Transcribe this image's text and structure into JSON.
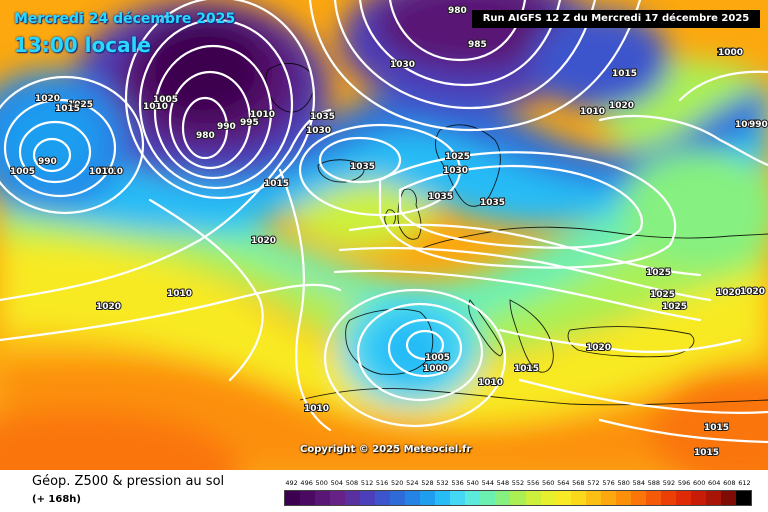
{
  "header": {
    "valid_date": "Mercredi 24 décembre 2025",
    "local_time": "13:00 locale",
    "run_info": "Run AIGFS 12 Z du Mercredi 17 décembre 2025"
  },
  "copyright": "Copyright © 2025 Meteociel.fr",
  "footer": {
    "caption": "Géop. Z500 & pression au sol",
    "forecast_hour": "(+ 168h)"
  },
  "legend": {
    "labels": [
      "492",
      "496",
      "500",
      "504",
      "508",
      "512",
      "516",
      "520",
      "524",
      "528",
      "532",
      "536",
      "540",
      "544",
      "548",
      "552",
      "556",
      "560",
      "564",
      "568",
      "572",
      "576",
      "580",
      "584",
      "588",
      "592",
      "596",
      "600",
      "604",
      "608",
      "612"
    ],
    "colors": [
      "#3c0050",
      "#4b0a62",
      "#5a1674",
      "#662286",
      "#5a2fa0",
      "#4b40ba",
      "#3c54cc",
      "#2e6ad8",
      "#2583e6",
      "#1f9ef0",
      "#28bcf6",
      "#44d8f4",
      "#5ceadc",
      "#6cf0b2",
      "#86f080",
      "#aaf054",
      "#ccf03c",
      "#e6f02c",
      "#f8ea24",
      "#fcd81c",
      "#fcc014",
      "#fca80e",
      "#fc900a",
      "#fa7608",
      "#f45a08",
      "#ea4006",
      "#de2a06",
      "#c81c06",
      "#a81406",
      "#7e0c04",
      "#000000"
    ]
  },
  "isobar_labels": [
    {
      "text": "980"
    },
    {
      "text": "1030"
    },
    {
      "text": "985"
    },
    {
      "text": "1030"
    },
    {
      "text": "1015"
    },
    {
      "text": "1020"
    },
    {
      "text": "1025"
    },
    {
      "text": "1010"
    },
    {
      "text": "1030"
    },
    {
      "text": "1020"
    },
    {
      "text": "1015"
    },
    {
      "text": "1005"
    },
    {
      "text": "1010"
    },
    {
      "text": "990"
    },
    {
      "text": "1005"
    },
    {
      "text": "1010"
    },
    {
      "text": "980"
    },
    {
      "text": "990"
    },
    {
      "text": "995"
    },
    {
      "text": "1010"
    },
    {
      "text": "1035"
    },
    {
      "text": "1030"
    },
    {
      "text": "1035"
    },
    {
      "text": "1015"
    },
    {
      "text": "1025"
    },
    {
      "text": "1030"
    },
    {
      "text": "1035"
    },
    {
      "text": "1035"
    },
    {
      "text": "1020"
    },
    {
      "text": "1020"
    },
    {
      "text": "1010"
    },
    {
      "text": "1025"
    },
    {
      "text": "1025"
    },
    {
      "text": "1025"
    },
    {
      "text": "1020"
    },
    {
      "text": "1005"
    },
    {
      "text": "1000"
    },
    {
      "text": "1015"
    },
    {
      "text": "1020"
    },
    {
      "text": "1010"
    },
    {
      "text": "1010"
    },
    {
      "text": "1015"
    },
    {
      "text": "1015"
    },
    {
      "text": "1010"
    },
    {
      "text": "1005"
    },
    {
      "text": "990"
    },
    {
      "text": "1000"
    },
    {
      "text": "1020"
    }
  ]
}
